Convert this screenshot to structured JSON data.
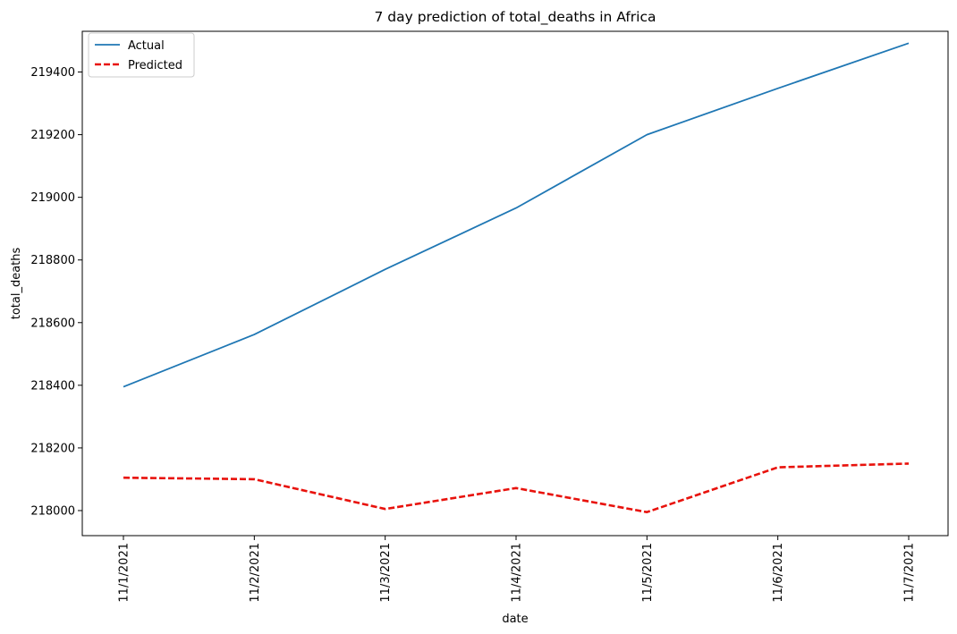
{
  "chart_data": {
    "type": "line",
    "title": "7 day prediction of total_deaths in Africa",
    "xlabel": "date",
    "ylabel": "total_deaths",
    "categories": [
      "11/1/2021",
      "11/2/2021",
      "11/3/2021",
      "11/4/2021",
      "11/5/2021",
      "11/6/2021",
      "11/7/2021"
    ],
    "yticks": [
      218000,
      218200,
      218400,
      218600,
      218800,
      219000,
      219200,
      219400
    ],
    "ylim": [
      217920,
      219530
    ],
    "grid": false,
    "legend_position": "upper-left",
    "series": [
      {
        "name": "Actual",
        "color": "#1f77b4",
        "style": "solid",
        "values": [
          218395,
          218562,
          218770,
          218966,
          219200,
          219348,
          219492
        ]
      },
      {
        "name": "Predicted",
        "color": "#e8120c",
        "style": "dashed",
        "values": [
          218105,
          218100,
          218005,
          218072,
          217995,
          218138,
          218150
        ]
      }
    ]
  }
}
